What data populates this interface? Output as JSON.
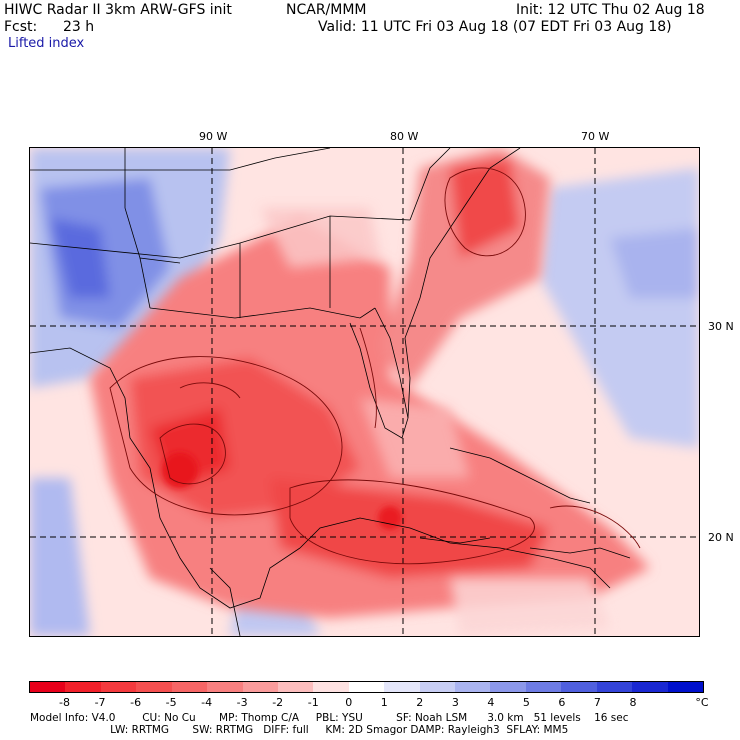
{
  "header": {
    "model_title": "HIWC Radar II 3km ARW-GFS init",
    "org": "NCAR/MMM",
    "init": "Init: 12 UTC Thu 02 Aug 18",
    "fcst_label": "Fcst:",
    "fcst_value": "23 h",
    "valid": "Valid: 11 UTC Fri 03 Aug 18 (07 EDT Fri 03 Aug 18)",
    "field": "Lifted index"
  },
  "map": {
    "lon_labels": [
      "90 W",
      "80 W",
      "70 W"
    ],
    "lat_labels": [
      "30 N",
      "20 N"
    ],
    "colors": {
      "strong_negative": "#e8121e",
      "negative": "#f56a6a",
      "weak_negative": "#fbc6c6",
      "neutral": "#ffe8e6",
      "positive": "#b8c2f0",
      "strong_positive": "#5060e0",
      "contour": "#7a0a0a",
      "border": "#000000"
    }
  },
  "colorbar": {
    "unit": "°C",
    "ticks": [
      "-8",
      "-7",
      "-6",
      "-5",
      "-4",
      "-3",
      "-2",
      "-1",
      "0",
      "1",
      "2",
      "3",
      "4",
      "5",
      "6",
      "7",
      "8"
    ],
    "colors": [
      "#e8001a",
      "#f2202a",
      "#f43a3e",
      "#f55050",
      "#f66666",
      "#f88080",
      "#fa9c9c",
      "#fcbebe",
      "#fee2e2",
      "#ffffff",
      "#e4e6fa",
      "#c8cef4",
      "#aab4f0",
      "#8c98ea",
      "#6e7ce4",
      "#5060de",
      "#3444d8",
      "#1a28d2",
      "#0010cc"
    ]
  },
  "footer": {
    "line1": "Model Info: V4.0        CU: No Cu       MP: Thomp C/A     PBL: YSU          SF: Noah LSM      3.0 km   51 levels    16 sec",
    "line2": "                        LW: RRTMG       SW: RRTMG   DIFF: full     KM: 2D Smagor DAMP: Rayleigh3  SFLAY: MM5"
  }
}
